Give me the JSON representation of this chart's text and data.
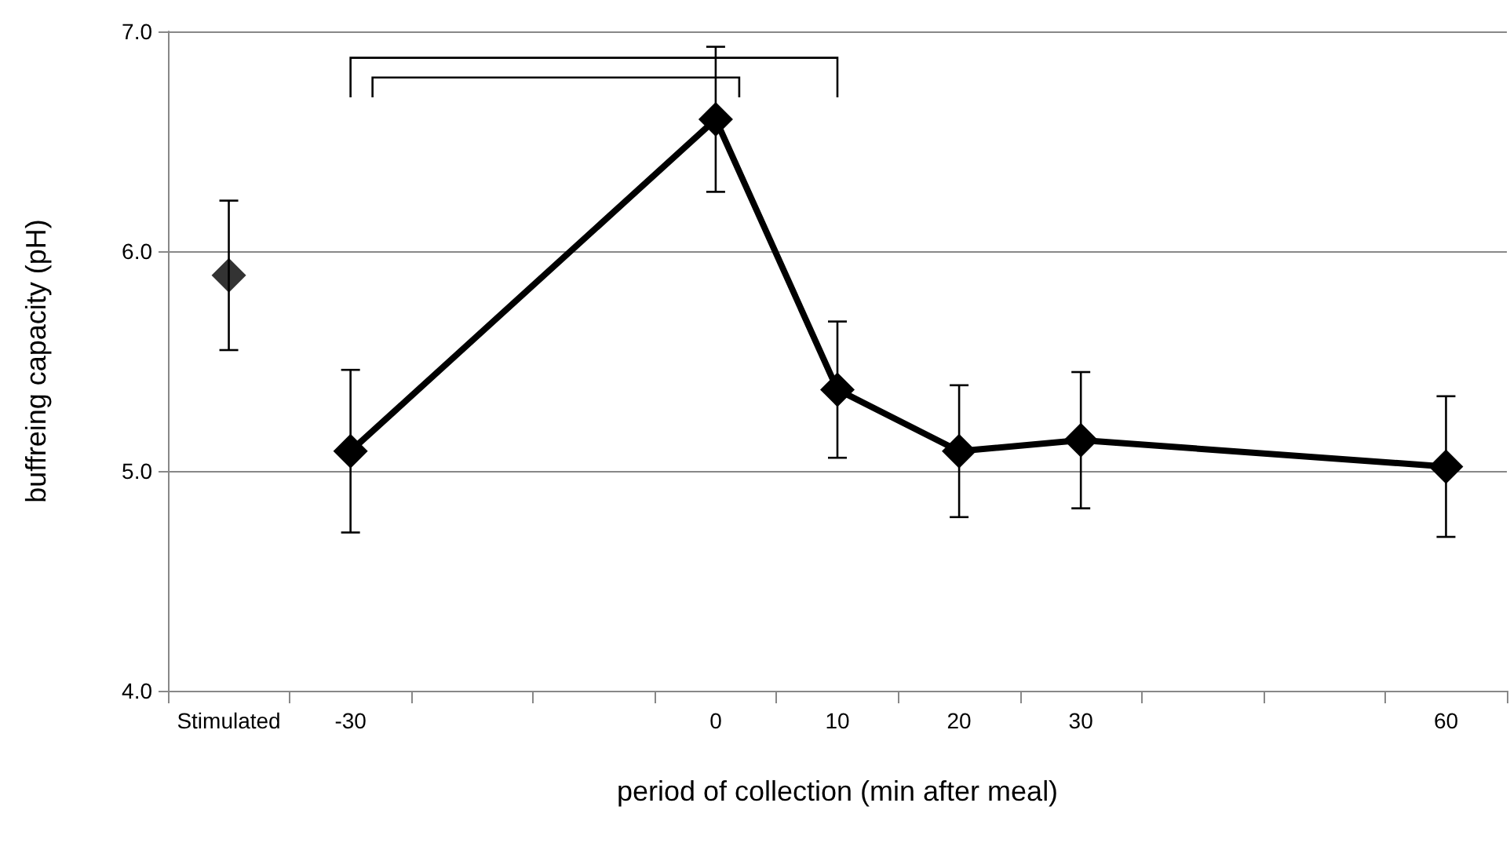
{
  "chart_data": {
    "type": "line",
    "xlabel": "period of collection (min after meal)",
    "ylabel": "buffreing capacity (pH)",
    "categories": [
      "Stimulated",
      "-30",
      null,
      null,
      "0",
      "10",
      "20",
      "30",
      null,
      null,
      "60"
    ],
    "series": [
      {
        "type": "scatter",
        "color": "#000000",
        "values": [
          5.89,
          null,
          null,
          null,
          null,
          null,
          null,
          null,
          null,
          null,
          null
        ],
        "errors": [
          0.34,
          null,
          null,
          null,
          null,
          null,
          null,
          null,
          null,
          null,
          null
        ]
      },
      {
        "color": "#000000",
        "values": [
          null,
          5.09,
          null,
          null,
          6.6,
          5.37,
          5.09,
          5.14,
          null,
          null,
          5.02
        ],
        "errors": [
          null,
          0.37,
          null,
          null,
          0.33,
          0.31,
          0.3,
          0.31,
          null,
          null,
          0.32
        ]
      }
    ],
    "ylim": [
      4,
      7
    ],
    "yticks": [
      {
        "value": 4,
        "label": "4.0"
      },
      {
        "value": 5,
        "label": "5.0"
      },
      {
        "value": 6,
        "label": "6.0"
      },
      {
        "value": 7,
        "label": "7.0"
      }
    ],
    "grid": "y",
    "marker": "diamond",
    "line_style": "solid"
  }
}
